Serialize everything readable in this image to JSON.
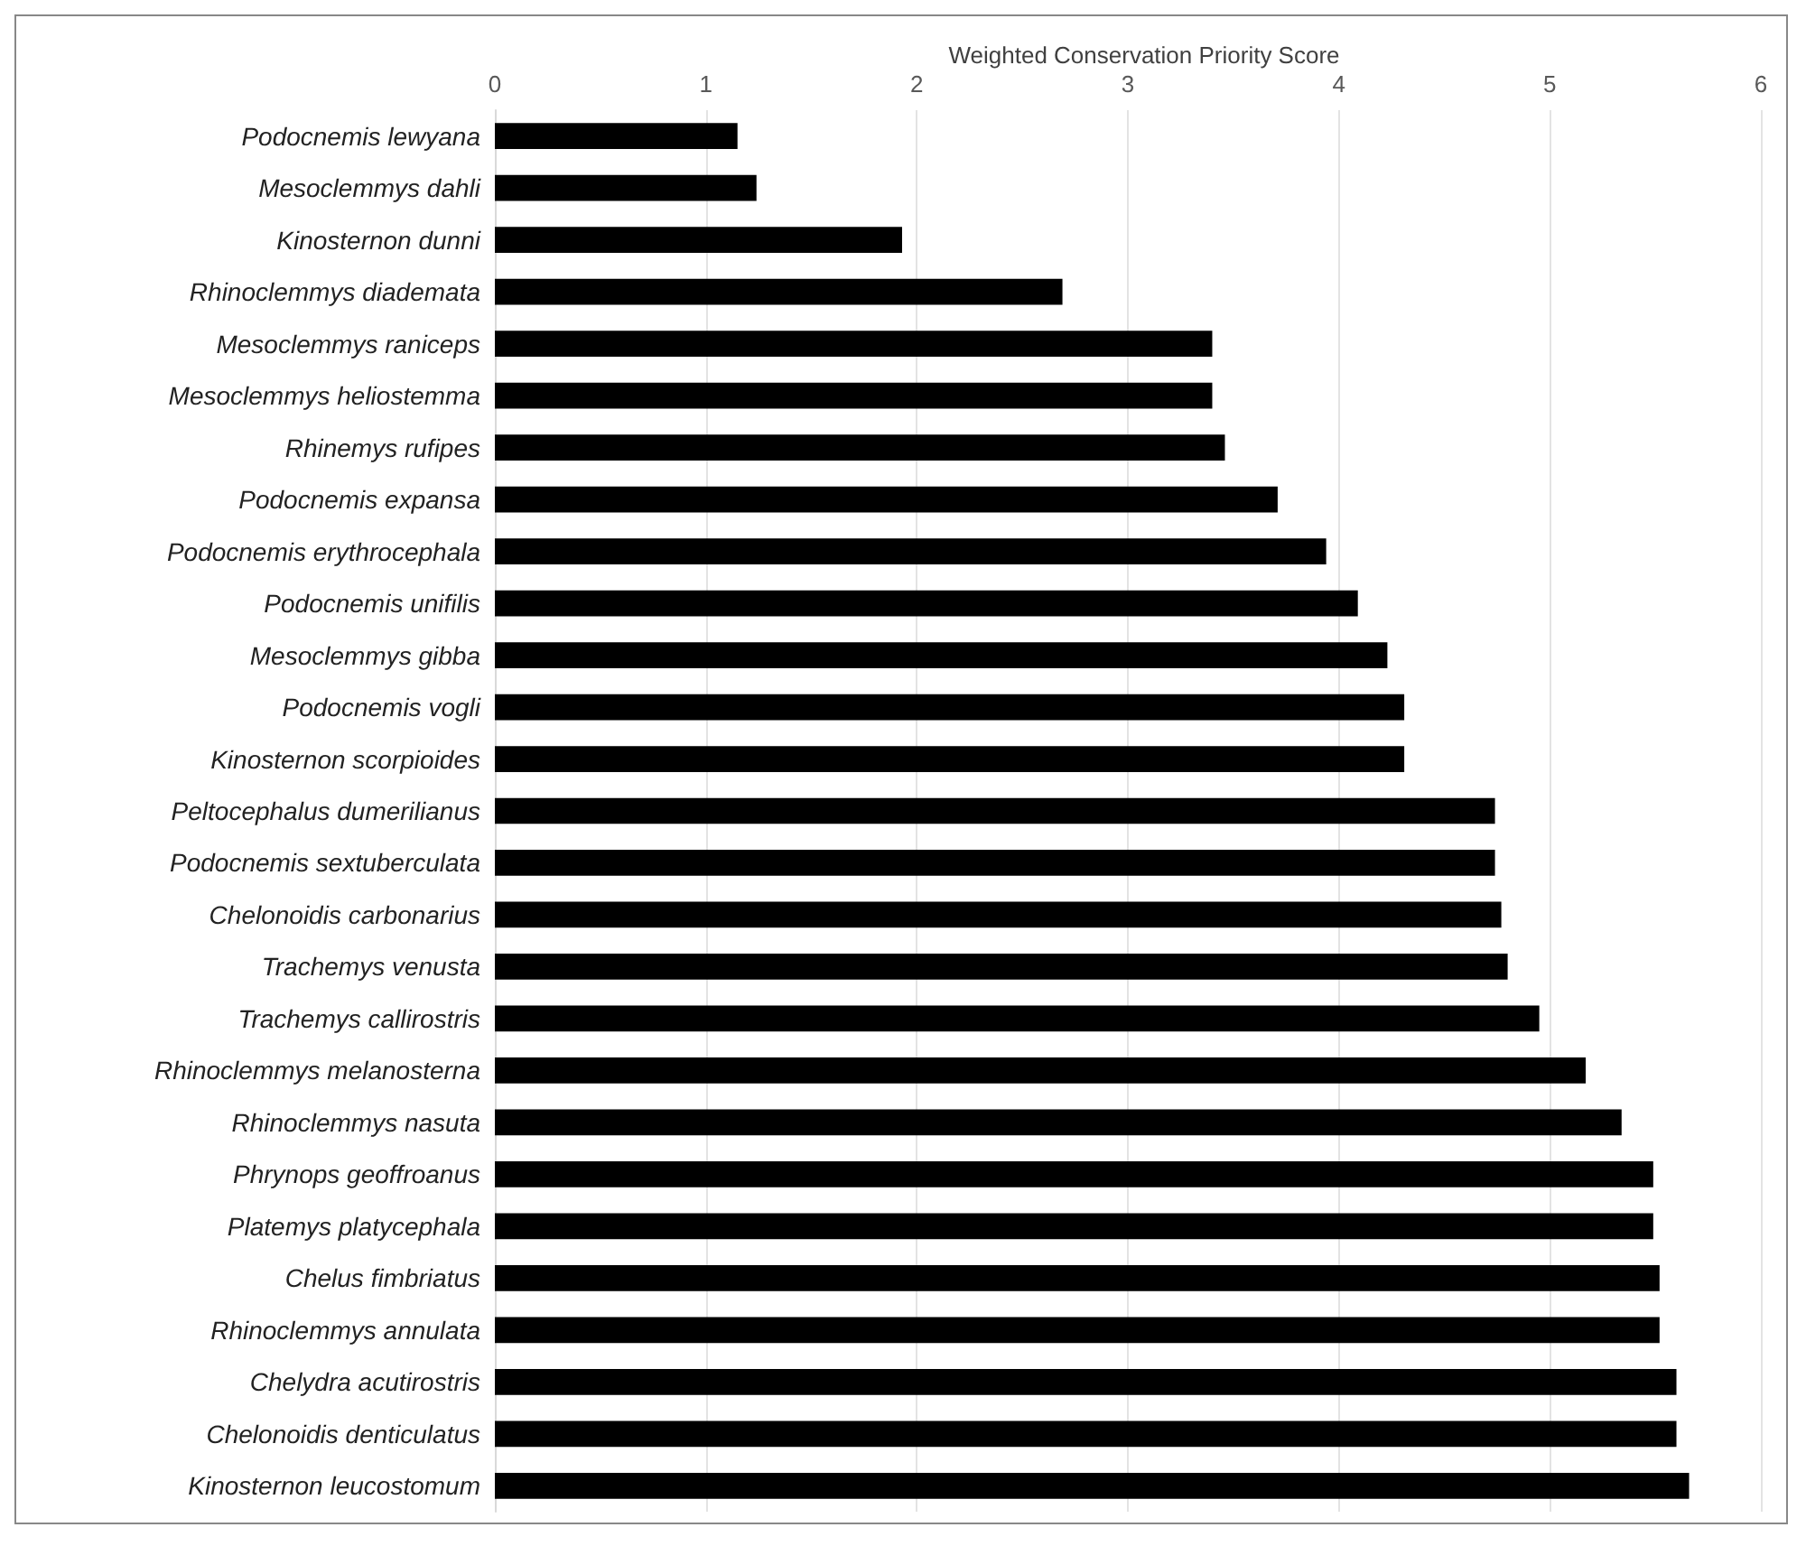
{
  "chart_data": {
    "type": "bar",
    "orientation": "horizontal",
    "title": "Weighted Conservation Priority Score",
    "categories": [
      "Podocnemis lewyana",
      "Mesoclemmys dahli",
      "Kinosternon dunni",
      "Rhinoclemmys diademata",
      "Mesoclemmys raniceps",
      "Mesoclemmys heliostemma",
      "Rhinemys rufipes",
      "Podocnemis expansa",
      "Podocnemis erythrocephala",
      "Podocnemis unifilis",
      "Mesoclemmys gibba",
      "Podocnemis vogli",
      "Kinosternon scorpioides",
      "Peltocephalus dumerilianus",
      "Podocnemis sextuberculata",
      "Chelonoidis carbonarius",
      "Trachemys venusta",
      "Trachemys callirostris",
      "Rhinoclemmys melanosterna",
      "Rhinoclemmys nasuta",
      "Phrynops geoffroanus",
      "Platemys platycephala",
      "Chelus fimbriatus",
      "Rhinoclemmys annulata",
      "Chelydra acutirostris",
      "Chelonoidis denticulatus",
      "Kinosternon leucostomum"
    ],
    "values": [
      1.15,
      1.24,
      1.93,
      2.69,
      3.4,
      3.4,
      3.46,
      3.71,
      3.94,
      4.09,
      4.23,
      4.31,
      4.31,
      4.74,
      4.74,
      4.77,
      4.8,
      4.95,
      5.17,
      5.34,
      5.49,
      5.49,
      5.52,
      5.52,
      5.6,
      5.6,
      5.66
    ],
    "color": "#000000",
    "xlim": [
      0,
      6
    ],
    "xticks": [
      0,
      1,
      2,
      3,
      4,
      5,
      6
    ],
    "grid": "x"
  }
}
